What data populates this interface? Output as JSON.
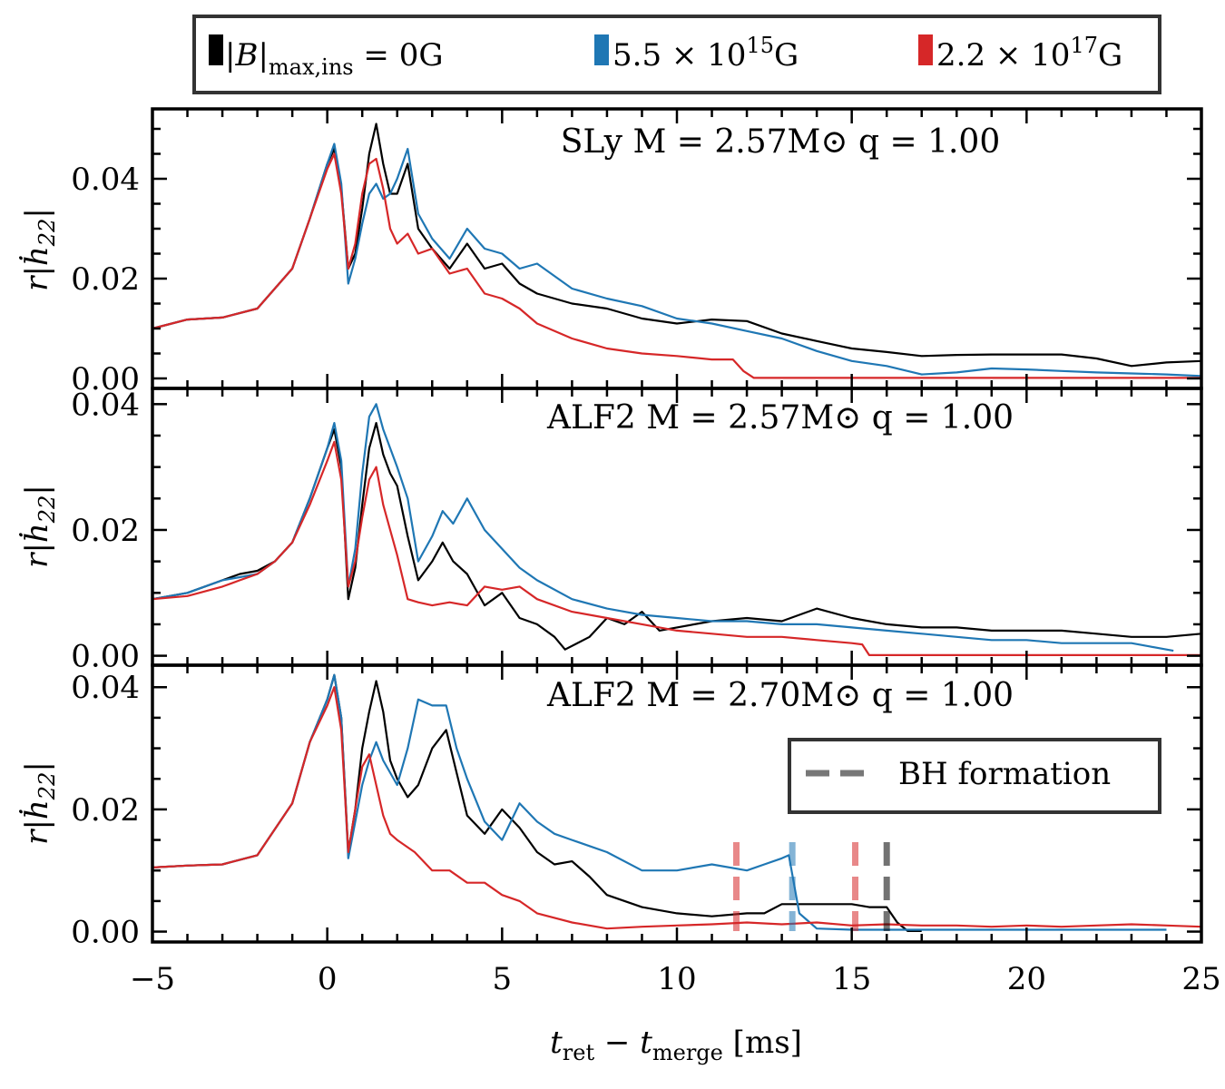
{
  "chart_data": [
    {
      "type": "line",
      "title": "SLy M = 2.57M⊙ q = 1.00",
      "xlabel": "t_ret − t_merge [ms]",
      "ylabel": "r|ḣ₂₂|",
      "xlim": [
        -5,
        25
      ],
      "ylim": [
        -0.002,
        0.054
      ],
      "yticks": [
        0.0,
        0.02,
        0.04
      ],
      "ytick_labels": [
        "0.00",
        "0.02",
        "0.04"
      ],
      "series": [
        {
          "name": "|B|max,ins = 0G",
          "color": "#000000",
          "x": [
            -5,
            -4,
            -3,
            -2,
            -1,
            -0.5,
            0,
            0.2,
            0.4,
            0.6,
            0.8,
            1.0,
            1.2,
            1.4,
            1.6,
            1.8,
            2.0,
            2.3,
            2.6,
            3.0,
            3.5,
            4.0,
            4.5,
            5.0,
            5.5,
            6.0,
            7.0,
            8.0,
            9.0,
            10.0,
            11.0,
            12.0,
            13.0,
            14.0,
            15.0,
            16.0,
            17.0,
            18.0,
            19.0,
            20.0,
            21.0,
            22.0,
            23.0,
            24.0,
            25.0
          ],
          "y": [
            0.01,
            0.0118,
            0.0122,
            0.014,
            0.022,
            0.032,
            0.043,
            0.046,
            0.038,
            0.022,
            0.025,
            0.034,
            0.045,
            0.051,
            0.043,
            0.037,
            0.037,
            0.043,
            0.03,
            0.026,
            0.022,
            0.027,
            0.022,
            0.023,
            0.019,
            0.017,
            0.015,
            0.014,
            0.012,
            0.011,
            0.0118,
            0.0115,
            0.009,
            0.0075,
            0.006,
            0.0053,
            0.0045,
            0.0047,
            0.0048,
            0.0048,
            0.0048,
            0.004,
            0.0025,
            0.0032,
            0.0035
          ]
        },
        {
          "name": "5.5 × 10^15 G",
          "color": "#1f77b4",
          "x": [
            -5,
            -4,
            -3,
            -2,
            -1,
            -0.5,
            0,
            0.2,
            0.4,
            0.6,
            0.8,
            1.0,
            1.2,
            1.4,
            1.6,
            1.8,
            2.0,
            2.3,
            2.6,
            3.0,
            3.5,
            4.0,
            4.5,
            5.0,
            5.5,
            6.0,
            7.0,
            8.0,
            9.0,
            10.0,
            11.0,
            12.0,
            13.0,
            14.0,
            15.0,
            16.0,
            17.0,
            18.0,
            19.0,
            20.0,
            21.0,
            22.0,
            23.0,
            24.0,
            25.0
          ],
          "y": [
            0.01,
            0.0118,
            0.0122,
            0.014,
            0.022,
            0.032,
            0.043,
            0.047,
            0.039,
            0.019,
            0.024,
            0.031,
            0.037,
            0.039,
            0.036,
            0.037,
            0.04,
            0.046,
            0.033,
            0.028,
            0.024,
            0.03,
            0.026,
            0.025,
            0.022,
            0.023,
            0.018,
            0.016,
            0.0145,
            0.012,
            0.011,
            0.0095,
            0.008,
            0.0055,
            0.0035,
            0.0025,
            0.0008,
            0.0012,
            0.002,
            0.0018,
            0.0015,
            0.0012,
            0.001,
            0.0008,
            0.0005
          ]
        },
        {
          "name": "2.2 × 10^17 G",
          "color": "#d62728",
          "x": [
            -5,
            -4,
            -3,
            -2,
            -1,
            -0.5,
            0,
            0.2,
            0.4,
            0.6,
            0.8,
            1.0,
            1.2,
            1.4,
            1.6,
            1.8,
            2.0,
            2.3,
            2.6,
            3.0,
            3.5,
            4.0,
            4.5,
            5.0,
            5.5,
            6.0,
            7.0,
            8.0,
            9.0,
            10.0,
            11.0,
            11.6,
            11.9,
            12.2,
            13.0,
            15.0,
            17.0,
            20.0,
            23.0,
            25.0
          ],
          "y": [
            0.01,
            0.0118,
            0.0122,
            0.014,
            0.022,
            0.032,
            0.042,
            0.045,
            0.037,
            0.022,
            0.027,
            0.037,
            0.043,
            0.044,
            0.038,
            0.03,
            0.027,
            0.029,
            0.025,
            0.026,
            0.021,
            0.022,
            0.017,
            0.016,
            0.014,
            0.011,
            0.008,
            0.006,
            0.005,
            0.0045,
            0.0038,
            0.0038,
            0.0015,
            0.0001,
            0.0001,
            0.0001,
            0.0001,
            0.0001,
            0.0001,
            0.0001
          ]
        }
      ]
    },
    {
      "type": "line",
      "title": "ALF2 M = 2.57M⊙ q = 1.00",
      "xlabel": "t_ret − t_merge [ms]",
      "ylabel": "r|ḣ₂₂|",
      "xlim": [
        -5,
        25
      ],
      "ylim": [
        -0.0015,
        0.0425
      ],
      "yticks": [
        0.0,
        0.02,
        0.04
      ],
      "ytick_labels": [
        "0.00",
        "0.02",
        "0.04"
      ],
      "series": [
        {
          "name": "|B|max,ins = 0G",
          "color": "#000000",
          "x": [
            -5,
            -4,
            -3,
            -2.5,
            -2,
            -1.5,
            -1,
            -0.5,
            0,
            0.2,
            0.4,
            0.6,
            0.8,
            1.0,
            1.2,
            1.4,
            1.6,
            1.8,
            2.0,
            2.3,
            2.6,
            3.0,
            3.3,
            3.6,
            4.0,
            4.5,
            5.0,
            5.5,
            6.0,
            6.5,
            6.8,
            7.5,
            8.0,
            8.5,
            9.0,
            9.5,
            10.0,
            11.0,
            12.0,
            13.0,
            14.0,
            15.0,
            16.0,
            17.0,
            18.0,
            19.0,
            20.0,
            21.0,
            22.0,
            23.0,
            24.0,
            25.0
          ],
          "y": [
            0.009,
            0.01,
            0.012,
            0.013,
            0.0135,
            0.015,
            0.018,
            0.025,
            0.033,
            0.036,
            0.03,
            0.009,
            0.014,
            0.024,
            0.033,
            0.037,
            0.032,
            0.029,
            0.027,
            0.019,
            0.012,
            0.015,
            0.018,
            0.015,
            0.013,
            0.008,
            0.01,
            0.006,
            0.005,
            0.003,
            0.001,
            0.003,
            0.006,
            0.005,
            0.007,
            0.004,
            0.0045,
            0.0055,
            0.006,
            0.0055,
            0.0075,
            0.006,
            0.005,
            0.0045,
            0.0045,
            0.004,
            0.004,
            0.004,
            0.0035,
            0.003,
            0.003,
            0.0035
          ]
        },
        {
          "name": "5.5 × 10^15 G",
          "color": "#1f77b4",
          "x": [
            -5,
            -4,
            -3,
            -2.5,
            -2,
            -1.5,
            -1,
            -0.5,
            0,
            0.2,
            0.4,
            0.6,
            0.8,
            1.0,
            1.2,
            1.4,
            1.6,
            1.8,
            2.0,
            2.3,
            2.6,
            3.0,
            3.3,
            3.6,
            4.0,
            4.5,
            5.0,
            5.5,
            6.0,
            7.0,
            8.0,
            9.0,
            10.0,
            11.0,
            12.0,
            13.0,
            14.0,
            15.0,
            16.0,
            17.0,
            18.0,
            19.0,
            20.0,
            21.0,
            22.0,
            23.0,
            23.5,
            24.0,
            24.2
          ],
          "y": [
            0.009,
            0.01,
            0.012,
            0.0125,
            0.013,
            0.015,
            0.018,
            0.025,
            0.033,
            0.037,
            0.031,
            0.011,
            0.017,
            0.029,
            0.038,
            0.04,
            0.036,
            0.033,
            0.03,
            0.025,
            0.015,
            0.019,
            0.023,
            0.021,
            0.025,
            0.02,
            0.017,
            0.014,
            0.012,
            0.009,
            0.0075,
            0.0065,
            0.006,
            0.0055,
            0.0055,
            0.005,
            0.005,
            0.0045,
            0.004,
            0.0035,
            0.003,
            0.0025,
            0.0025,
            0.002,
            0.002,
            0.002,
            0.0015,
            0.001,
            0.0008
          ]
        },
        {
          "name": "2.2 × 10^17 G",
          "color": "#d62728",
          "x": [
            -5,
            -4,
            -3,
            -2.5,
            -2,
            -1.5,
            -1,
            -0.5,
            0,
            0.2,
            0.4,
            0.6,
            0.8,
            1.0,
            1.2,
            1.4,
            1.6,
            1.8,
            2.0,
            2.3,
            2.6,
            3.0,
            3.5,
            4.0,
            4.5,
            5.0,
            5.5,
            6.0,
            7.0,
            8.0,
            9.0,
            10.0,
            11.0,
            12.0,
            13.0,
            14.0,
            15.0,
            15.3,
            15.5,
            16.0,
            20.0,
            25.0
          ],
          "y": [
            0.009,
            0.0095,
            0.011,
            0.012,
            0.013,
            0.015,
            0.018,
            0.024,
            0.031,
            0.034,
            0.028,
            0.011,
            0.015,
            0.022,
            0.028,
            0.03,
            0.024,
            0.02,
            0.016,
            0.009,
            0.0085,
            0.008,
            0.0085,
            0.008,
            0.011,
            0.0105,
            0.011,
            0.009,
            0.007,
            0.006,
            0.005,
            0.004,
            0.0035,
            0.003,
            0.003,
            0.0025,
            0.002,
            0.0018,
            0.0001,
            0.0001,
            0.0001,
            0.0001
          ]
        }
      ]
    },
    {
      "type": "line",
      "title": "ALF2 M = 2.70M⊙ q = 1.00",
      "xlabel": "t_ret − t_merge [ms]",
      "ylabel": "r|ḣ₂₂|",
      "xlim": [
        -5,
        25
      ],
      "ylim": [
        -0.0017,
        0.0436
      ],
      "yticks": [
        0.0,
        0.02,
        0.04
      ],
      "ytick_labels": [
        "0.00",
        "0.02",
        "0.04"
      ],
      "xticks": [
        -5,
        0,
        5,
        10,
        15,
        20,
        25
      ],
      "xtick_labels": [
        "−5",
        "0",
        "5",
        "10",
        "15",
        "20",
        "25"
      ],
      "series": [
        {
          "name": "|B|max,ins = 0G",
          "color": "#000000",
          "x": [
            -5,
            -4,
            -3,
            -2,
            -1,
            -0.5,
            0,
            0.2,
            0.4,
            0.6,
            0.8,
            1.0,
            1.2,
            1.4,
            1.6,
            1.8,
            2.0,
            2.3,
            2.6,
            3.0,
            3.4,
            3.7,
            4.0,
            4.5,
            5.0,
            5.5,
            6.0,
            6.5,
            7.0,
            7.5,
            8.0,
            9.0,
            10.0,
            11.0,
            12.0,
            12.5,
            13.0,
            14.0,
            15.0,
            15.5,
            16.0,
            16.3,
            16.6,
            17.0
          ],
          "y": [
            0.0105,
            0.0108,
            0.011,
            0.0125,
            0.021,
            0.031,
            0.038,
            0.042,
            0.035,
            0.013,
            0.02,
            0.03,
            0.036,
            0.041,
            0.036,
            0.028,
            0.025,
            0.022,
            0.024,
            0.03,
            0.033,
            0.026,
            0.019,
            0.016,
            0.02,
            0.017,
            0.013,
            0.011,
            0.0115,
            0.009,
            0.006,
            0.004,
            0.003,
            0.0025,
            0.003,
            0.003,
            0.0045,
            0.0045,
            0.0045,
            0.004,
            0.004,
            0.0015,
            0.0001,
            0.0001
          ]
        },
        {
          "name": "5.5 × 10^15 G",
          "color": "#1f77b4",
          "x": [
            -5,
            -4,
            -3,
            -2,
            -1,
            -0.5,
            0,
            0.2,
            0.4,
            0.6,
            0.8,
            1.0,
            1.2,
            1.4,
            1.6,
            1.8,
            2.0,
            2.3,
            2.6,
            3.0,
            3.4,
            3.7,
            4.0,
            4.5,
            5.0,
            5.5,
            6.0,
            6.5,
            7.0,
            7.5,
            8.0,
            9.0,
            10.0,
            11.0,
            12.0,
            12.5,
            13.0,
            13.2,
            13.5,
            14.0,
            15.0,
            17.0,
            20.0,
            22.0,
            24.0
          ],
          "y": [
            0.0105,
            0.0108,
            0.011,
            0.0125,
            0.021,
            0.031,
            0.038,
            0.042,
            0.035,
            0.012,
            0.018,
            0.024,
            0.028,
            0.031,
            0.028,
            0.026,
            0.024,
            0.03,
            0.038,
            0.037,
            0.037,
            0.03,
            0.025,
            0.018,
            0.015,
            0.021,
            0.018,
            0.016,
            0.015,
            0.014,
            0.013,
            0.01,
            0.01,
            0.011,
            0.01,
            0.011,
            0.012,
            0.0125,
            0.003,
            0.0005,
            0.0003,
            0.0003,
            0.0003,
            0.0003,
            0.0003
          ]
        },
        {
          "name": "2.2 × 10^17 G",
          "color": "#d62728",
          "x": [
            -5,
            -4,
            -3,
            -2,
            -1,
            -0.5,
            0,
            0.2,
            0.4,
            0.6,
            0.8,
            1.0,
            1.2,
            1.4,
            1.6,
            1.8,
            2.0,
            2.5,
            3.0,
            3.5,
            4.0,
            4.5,
            5.0,
            5.5,
            6.0,
            7.0,
            8.0,
            9.0,
            10.0,
            11.0,
            12.0,
            13.0,
            14.0,
            15.0,
            16.0,
            17.0,
            18.0,
            19.0,
            20.0,
            21.0,
            22.0,
            23.0,
            24.0,
            25.0
          ],
          "y": [
            0.0105,
            0.0108,
            0.011,
            0.0125,
            0.021,
            0.031,
            0.037,
            0.04,
            0.033,
            0.013,
            0.02,
            0.027,
            0.029,
            0.024,
            0.019,
            0.016,
            0.015,
            0.013,
            0.01,
            0.01,
            0.008,
            0.008,
            0.006,
            0.005,
            0.003,
            0.0015,
            0.0005,
            0.0008,
            0.001,
            0.0012,
            0.0015,
            0.0012,
            0.0015,
            0.001,
            0.0012,
            0.001,
            0.001,
            0.0008,
            0.001,
            0.0008,
            0.001,
            0.0012,
            0.001,
            0.0008
          ]
        }
      ],
      "annotations": [
        {
          "label": "BH formation",
          "x": 11.7,
          "color": "#d62728"
        },
        {
          "label": "BH formation",
          "x": 13.3,
          "color": "#1f77b4"
        },
        {
          "label": "BH formation",
          "x": 15.1,
          "color": "#d62728"
        },
        {
          "label": "BH formation",
          "x": 16.0,
          "color": "#000000"
        }
      ],
      "legend": {
        "label": "BH formation",
        "placement": "right"
      }
    }
  ],
  "legend": {
    "entries": [
      {
        "label_main": "|B|",
        "label_sub": "max,ins",
        "label_tail": " = 0G",
        "color": "#000000"
      },
      {
        "label_main": "5.5 × 10",
        "label_sup": "15",
        "label_tail": "G",
        "color": "#1f77b4"
      },
      {
        "label_main": "2.2 × 10",
        "label_sup": "17",
        "label_tail": "G",
        "color": "#d62728"
      }
    ],
    "placement": "top"
  },
  "axis_text": {
    "xlabel_t1": "t",
    "xlabel_sub1": "ret",
    "xlabel_mid": " − ",
    "xlabel_t2": "t",
    "xlabel_sub2": "merge",
    "xlabel_unit": " [ms]",
    "ylabel_r": "r|",
    "ylabel_h": "ḣ",
    "ylabel_sub": "22",
    "ylabel_bar": "|"
  }
}
